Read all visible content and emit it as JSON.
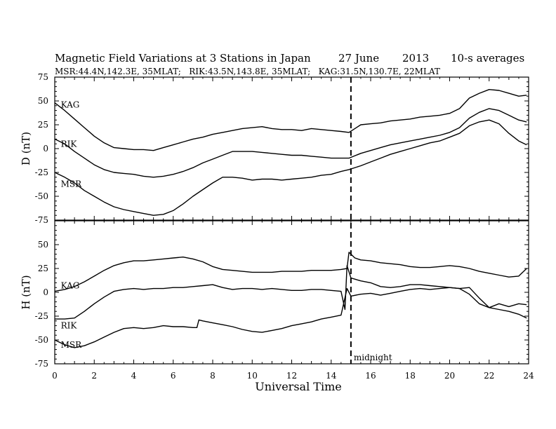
{
  "header": {
    "title": "Magnetic Field Variations at 3 Stations in Japan",
    "date": "27 June",
    "year": "2013",
    "averaging": "10-s averages",
    "stations_line": "MSR:44.4N,142.3E, 35MLAT;   RIK:43.5N,143.8E, 35MLAT;   KAG:31.5N,130.7E, 22MLAT"
  },
  "annotations": {
    "midnight": "midnight"
  },
  "chart_data": [
    {
      "type": "line",
      "panel": "D",
      "ylabel": "D (nT)",
      "xlabel": "Universal Time",
      "xlim": [
        0,
        24
      ],
      "ylim": [
        -75,
        75
      ],
      "xticks": [
        "0",
        "2",
        "4",
        "6",
        "8",
        "10",
        "12",
        "14",
        "16",
        "18",
        "20",
        "22",
        "24"
      ],
      "yticks": [
        "75",
        "50",
        "25",
        "0",
        "-25",
        "-50",
        "-75"
      ],
      "midnight_ut": 15,
      "series": [
        {
          "name": "KAG",
          "label_at": [
            0.2,
            43
          ],
          "x": [
            0,
            0.5,
            1,
            1.5,
            2,
            2.5,
            3,
            3.5,
            4,
            4.5,
            5,
            5.5,
            6,
            6.5,
            7,
            7.5,
            8,
            8.5,
            9,
            9.5,
            10,
            10.5,
            11,
            11.5,
            12,
            12.5,
            13,
            13.5,
            14,
            14.5,
            14.9,
            15.5,
            16,
            16.5,
            17,
            17.5,
            18,
            18.5,
            19,
            19.5,
            20,
            20.5,
            21,
            21.5,
            22,
            22.5,
            23,
            23.5,
            23.9
          ],
          "values": [
            48,
            40,
            31,
            22,
            13,
            6,
            1,
            0,
            -1,
            -1,
            -2,
            1,
            4,
            7,
            10,
            12,
            15,
            17,
            19,
            21,
            22,
            23,
            21,
            20,
            20,
            19,
            21,
            20,
            19,
            18,
            17,
            25,
            26,
            27,
            29,
            30,
            31,
            33,
            34,
            35,
            37,
            42,
            53,
            58,
            62,
            61,
            58,
            55,
            56
          ]
        },
        {
          "name": "RIK",
          "label_at": [
            0.2,
            2
          ],
          "x": [
            0,
            0.5,
            1,
            1.5,
            2,
            2.5,
            3,
            3.5,
            4,
            4.5,
            5,
            5.5,
            6,
            6.5,
            7,
            7.5,
            8,
            8.5,
            9,
            9.5,
            10,
            10.5,
            11,
            11.5,
            12,
            12.5,
            13,
            13.5,
            14,
            14.5,
            14.9,
            15.5,
            16,
            16.5,
            17,
            17.5,
            18,
            18.5,
            19,
            19.5,
            20,
            20.5,
            21,
            21.5,
            22,
            22.5,
            23,
            23.5,
            23.9
          ],
          "values": [
            10,
            5,
            -3,
            -10,
            -17,
            -22,
            -25,
            -26,
            -27,
            -29,
            -30,
            -29,
            -27,
            -24,
            -20,
            -15,
            -11,
            -7,
            -3,
            -3,
            -3,
            -4,
            -5,
            -6,
            -7,
            -7,
            -8,
            -9,
            -10,
            -10,
            -10,
            -5,
            -2,
            1,
            4,
            6,
            8,
            10,
            12,
            14,
            17,
            22,
            32,
            38,
            42,
            40,
            35,
            30,
            28
          ]
        },
        {
          "name": "MSR",
          "label_at": [
            0.2,
            -40
          ],
          "x": [
            0,
            0.5,
            1,
            1.5,
            2,
            2.5,
            3,
            3.5,
            4,
            4.5,
            5,
            5.5,
            6,
            6.5,
            7,
            7.5,
            8,
            8.5,
            9,
            9.5,
            10,
            10.5,
            11,
            11.5,
            12,
            12.5,
            13,
            13.5,
            14,
            14.5,
            14.9,
            15.5,
            16,
            16.5,
            17,
            17.5,
            18,
            18.5,
            19,
            19.5,
            20,
            20.5,
            21,
            21.5,
            22,
            22.5,
            23,
            23.5,
            23.9
          ],
          "values": [
            -25,
            -30,
            -36,
            -44,
            -50,
            -56,
            -61,
            -64,
            -66,
            -68,
            -70,
            -69,
            -65,
            -58,
            -50,
            -43,
            -36,
            -30,
            -30,
            -31,
            -33,
            -32,
            -32,
            -33,
            -32,
            -31,
            -30,
            -28,
            -27,
            -24,
            -22,
            -18,
            -14,
            -10,
            -6,
            -3,
            0,
            3,
            6,
            8,
            12,
            16,
            24,
            28,
            30,
            26,
            16,
            8,
            4
          ]
        }
      ]
    },
    {
      "type": "line",
      "panel": "H",
      "ylabel": "H (nT)",
      "xlabel": "Universal Time",
      "xlim": [
        0,
        24
      ],
      "ylim": [
        -75,
        75
      ],
      "xticks": [
        "0",
        "2",
        "4",
        "6",
        "8",
        "10",
        "12",
        "14",
        "16",
        "18",
        "20",
        "22",
        "24"
      ],
      "yticks": [
        "75",
        "50",
        "25",
        "0",
        "-25",
        "-50",
        "-75"
      ],
      "midnight_ut": 15,
      "series": [
        {
          "name": "KAG",
          "label_at": [
            0.2,
            4
          ],
          "x": [
            0,
            0.5,
            1,
            1.5,
            2,
            2.5,
            3,
            3.5,
            4,
            4.5,
            5,
            5.5,
            6,
            6.5,
            7,
            7.5,
            8,
            8.5,
            9,
            9.5,
            10,
            10.5,
            11,
            11.5,
            12,
            12.5,
            13,
            13.5,
            14,
            14.5,
            14.8,
            14.9,
            15.2,
            15.5,
            16,
            16.5,
            17,
            17.5,
            18,
            18.5,
            19,
            19.5,
            20,
            20.5,
            21,
            21.5,
            22,
            22.5,
            23,
            23.5,
            23.9
          ],
          "values": [
            1,
            3,
            6,
            11,
            17,
            23,
            28,
            31,
            33,
            33,
            34,
            35,
            36,
            37,
            35,
            32,
            27,
            24,
            23,
            22,
            21,
            21,
            21,
            22,
            22,
            22,
            23,
            23,
            23,
            24,
            25,
            42,
            36,
            34,
            33,
            31,
            30,
            29,
            27,
            26,
            26,
            27,
            28,
            27,
            25,
            22,
            20,
            18,
            16,
            17,
            25
          ]
        },
        {
          "name": "RIK",
          "label_at": [
            0.2,
            -38
          ],
          "x": [
            0,
            0.5,
            1,
            1.5,
            2,
            2.5,
            3,
            3.5,
            4,
            4.5,
            5,
            5.5,
            6,
            6.5,
            7,
            7.5,
            8,
            8.5,
            9,
            9.5,
            10,
            10.5,
            11,
            11.5,
            12,
            12.5,
            13,
            13.5,
            14,
            14.5,
            14.7,
            14.8,
            15,
            15.5,
            16,
            16.5,
            17,
            17.5,
            18,
            18.5,
            19,
            19.5,
            20,
            20.5,
            21,
            21.5,
            22,
            22.5,
            23,
            23.5,
            23.9
          ],
          "values": [
            -28,
            -28,
            -27,
            -20,
            -12,
            -5,
            1,
            3,
            4,
            3,
            4,
            4,
            5,
            5,
            6,
            7,
            8,
            5,
            3,
            4,
            4,
            3,
            4,
            3,
            2,
            2,
            3,
            3,
            2,
            1,
            -18,
            28,
            15,
            12,
            10,
            6,
            5,
            6,
            8,
            8,
            7,
            6,
            5,
            4,
            5,
            -6,
            -16,
            -12,
            -15,
            -12,
            -13
          ]
        },
        {
          "name": "MSR",
          "label_at": [
            0.2,
            -58
          ],
          "x": [
            0,
            0.5,
            1,
            1.5,
            2,
            2.5,
            3,
            3.5,
            4,
            4.5,
            5,
            5.5,
            6,
            6.5,
            7,
            7.2,
            7.3,
            7.5,
            8,
            8.5,
            9,
            9.5,
            10,
            10.5,
            11,
            11.5,
            12,
            12.5,
            13,
            13.5,
            14,
            14.5,
            14.8,
            15,
            15.5,
            16,
            16.5,
            17,
            17.5,
            18,
            18.5,
            19,
            19.5,
            20,
            20.5,
            21,
            21.5,
            22,
            22.5,
            23,
            23.5,
            23.9
          ],
          "values": [
            -50,
            -55,
            -58,
            -56,
            -52,
            -47,
            -42,
            -38,
            -37,
            -38,
            -37,
            -35,
            -36,
            -36,
            -37,
            -37,
            -29,
            -30,
            -32,
            -34,
            -36,
            -39,
            -41,
            -42,
            -40,
            -38,
            -35,
            -33,
            -31,
            -28,
            -26,
            -24,
            4,
            -4,
            -2,
            -1,
            -3,
            -1,
            1,
            3,
            4,
            3,
            4,
            5,
            4,
            -2,
            -12,
            -16,
            -18,
            -20,
            -23,
            -27
          ]
        }
      ]
    }
  ]
}
